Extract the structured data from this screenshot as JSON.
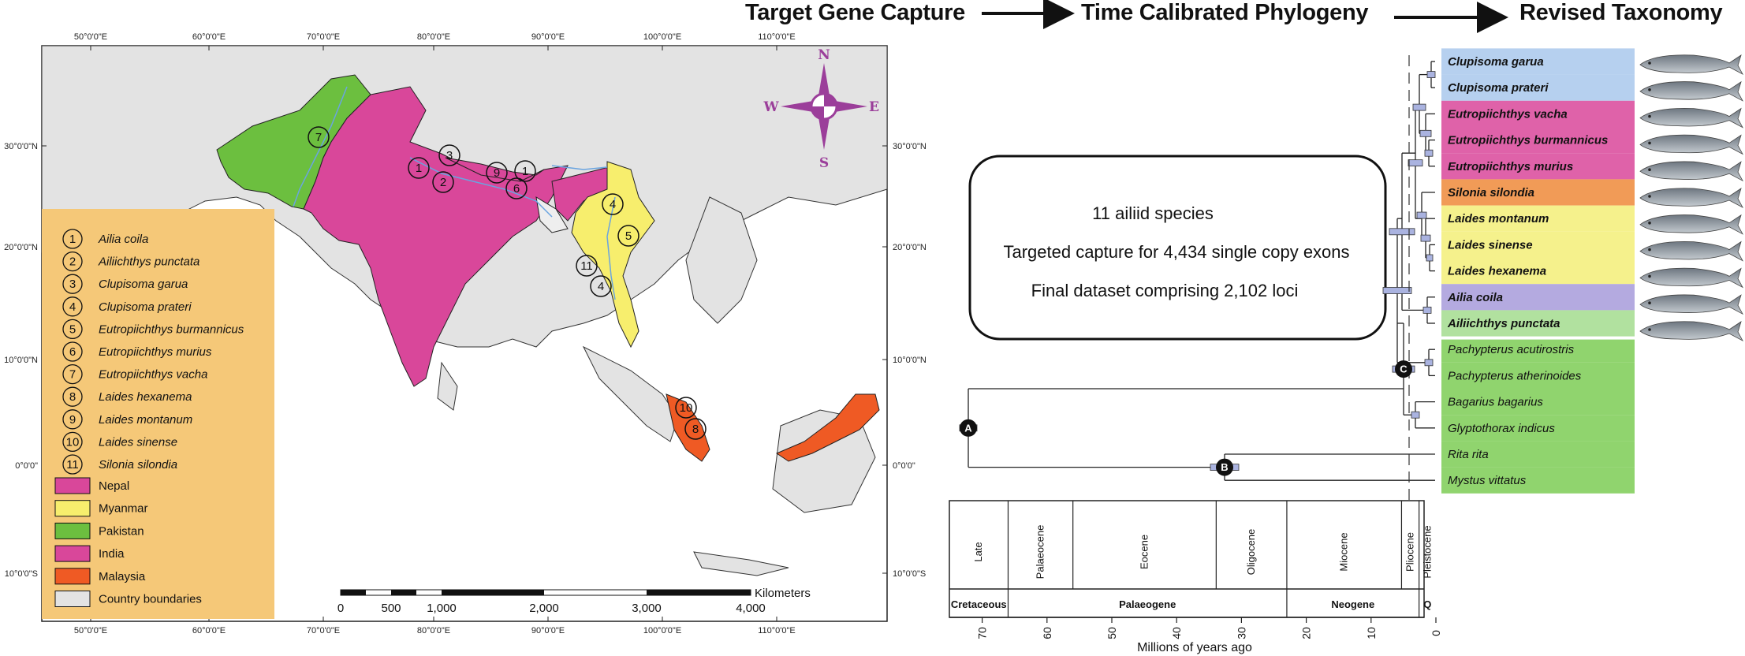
{
  "workflow": {
    "step1": "Target Gene Capture",
    "step2": "Time Calibrated Phylogeny",
    "step3": "Revised Taxonomy"
  },
  "map": {
    "lon_labels": [
      "50°0'0\"E",
      "60°0'0\"E",
      "70°0'0\"E",
      "80°0'0\"E",
      "90°0'0\"E",
      "100°0'0\"E",
      "110°0'0\"E"
    ],
    "lat_labels_left": [
      "30°0'0\"N",
      "20°0'0\"N",
      "10°0'0\"N",
      "0°0'0\"",
      "10°0'0\"S"
    ],
    "lat_labels_right": [
      "30°0'0\"N",
      "20°0'0\"N",
      "10°0'0\"N",
      "0°0'0\"",
      "10°0'0\"S"
    ],
    "compass": {
      "n": "N",
      "s": "S",
      "e": "E",
      "w": "W"
    },
    "scalebar": {
      "unit": "Kilometers",
      "ticks": [
        "0",
        "500",
        "1,000",
        "2,000",
        "3,000",
        "4,000"
      ]
    },
    "markers": [
      "7",
      "3",
      "1",
      "2",
      "9",
      "1",
      "6",
      "4",
      "5",
      "11",
      "4",
      "10",
      "8"
    ],
    "colors": {
      "nepal": "#d9479a",
      "myanmar": "#f7ee6d",
      "pakistan": "#6cbf3f",
      "india": "#d9479a",
      "malaysia": "#ef5a24",
      "boundary": "#e3e3e3",
      "legend_bg": "#f5c878"
    }
  },
  "legend": {
    "species": [
      {
        "num": "1",
        "name": "Ailia coila"
      },
      {
        "num": "2",
        "name": "Ailiichthys punctata"
      },
      {
        "num": "3",
        "name": "Clupisoma garua"
      },
      {
        "num": "4",
        "name": "Clupisoma prateri"
      },
      {
        "num": "5",
        "name": "Eutropiichthys burmannicus"
      },
      {
        "num": "6",
        "name": "Eutropiichthys murius"
      },
      {
        "num": "7",
        "name": "Eutropiichthys vacha"
      },
      {
        "num": "8",
        "name": "Laides hexanema"
      },
      {
        "num": "9",
        "name": "Laides montanum"
      },
      {
        "num": "10",
        "name": "Laides sinense"
      },
      {
        "num": "11",
        "name": "Silonia silondia"
      }
    ],
    "countries": [
      {
        "name": "Nepal",
        "color": "#d9479a"
      },
      {
        "name": "Myanmar",
        "color": "#f7ee6d"
      },
      {
        "name": "Pakistan",
        "color": "#6cbf3f"
      },
      {
        "name": "India",
        "color": "#d9479a"
      },
      {
        "name": "Malaysia",
        "color": "#ef5a24"
      },
      {
        "name": "Country boundaries",
        "color": "#e3e3e3"
      }
    ]
  },
  "summary_box": {
    "line1": "11 ailiid species",
    "line2": "Targeted capture for 4,434 single copy exons",
    "line3": "Final dataset comprising 2,102 loci"
  },
  "tree": {
    "taxa": [
      {
        "name": "Clupisoma garua",
        "bold": true,
        "band": "#a9c8ec"
      },
      {
        "name": "Clupisoma prateri",
        "bold": true,
        "band": "#a9c8ec"
      },
      {
        "name": "Eutropiichthys vacha",
        "bold": true,
        "band": "#d9479a"
      },
      {
        "name": "Eutropiichthys burmannicus",
        "bold": true,
        "band": "#d9479a"
      },
      {
        "name": "Eutropiichthys murius",
        "bold": true,
        "band": "#d9479a"
      },
      {
        "name": "Silonia silondia",
        "bold": true,
        "band": "#ef8a3a"
      },
      {
        "name": "Laides montanum",
        "bold": true,
        "band": "#f3ee78"
      },
      {
        "name": "Laides sinense",
        "bold": true,
        "band": "#f3ee78"
      },
      {
        "name": "Laides hexanema",
        "bold": true,
        "band": "#f3ee78"
      },
      {
        "name": "Ailia coila",
        "bold": true,
        "band": "#a79bdb"
      },
      {
        "name": "Ailiichthys punctata",
        "bold": true,
        "band": "#a3dc8e"
      },
      {
        "name": "Pachypterus acutirostris",
        "bold": false,
        "band": "#7ccc55"
      },
      {
        "name": "Pachypterus atherinoides",
        "bold": false,
        "band": "#7ccc55"
      },
      {
        "name": "Bagarius bagarius",
        "bold": false,
        "band": "#7ccc55"
      },
      {
        "name": "Glyptothorax indicus",
        "bold": false,
        "band": "#7ccc55"
      },
      {
        "name": "Rita rita",
        "bold": false,
        "band": "#7ccc55"
      },
      {
        "name": "Mystus vittatus",
        "bold": false,
        "band": "#7ccc55"
      }
    ],
    "node_labels": {
      "a": "A",
      "b": "B",
      "c": "C"
    }
  },
  "timescale": {
    "epochs": [
      "Late",
      "Palaeocene",
      "Eocene",
      "Oligocene",
      "Miocene",
      "Pliocene",
      "Pleistocene"
    ],
    "periods": [
      "Cretaceous",
      "Palaeogene",
      "Neogene",
      "Q"
    ],
    "ticks": [
      "70",
      "60",
      "50",
      "40",
      "30",
      "20",
      "10",
      "0"
    ],
    "xlabel": "Millions of years ago"
  }
}
